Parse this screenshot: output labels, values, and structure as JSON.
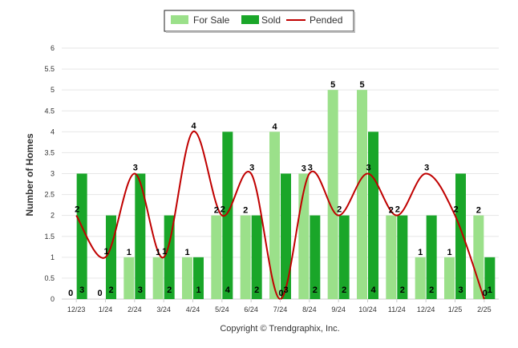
{
  "chart_data": {
    "type": "bar",
    "categories": [
      "12/23",
      "1/24",
      "2/24",
      "3/24",
      "4/24",
      "5/24",
      "6/24",
      "7/24",
      "8/24",
      "9/24",
      "10/24",
      "11/24",
      "12/24",
      "1/25",
      "2/25"
    ],
    "series": [
      {
        "name": "For Sale",
        "kind": "bar",
        "color": "#9be08a",
        "values": [
          0,
          0,
          1,
          1,
          1,
          2,
          2,
          4,
          3,
          5,
          5,
          2,
          1,
          1,
          2
        ]
      },
      {
        "name": "Sold",
        "kind": "bar",
        "color": "#1aa629",
        "values": [
          3,
          2,
          3,
          2,
          1,
          4,
          2,
          3,
          2,
          2,
          4,
          2,
          2,
          3,
          1
        ]
      },
      {
        "name": "Pended",
        "kind": "line",
        "color": "#c00000",
        "values": [
          2,
          1,
          3,
          1,
          4,
          2,
          3,
          0,
          3,
          2,
          3,
          2,
          3,
          2,
          0
        ]
      }
    ],
    "ylabel": "Number of Homes",
    "xlabel": "",
    "ylim": [
      0,
      6
    ],
    "yticks": [
      "0",
      "0.5",
      "1",
      "1.5",
      "2",
      "2.5",
      "3",
      "3.5",
      "4",
      "4.5",
      "5",
      "5.5",
      "6"
    ],
    "grid": true,
    "legend_position": "top-center"
  },
  "footer": {
    "copyright": "Copyright © Trendgraphix, Inc."
  }
}
